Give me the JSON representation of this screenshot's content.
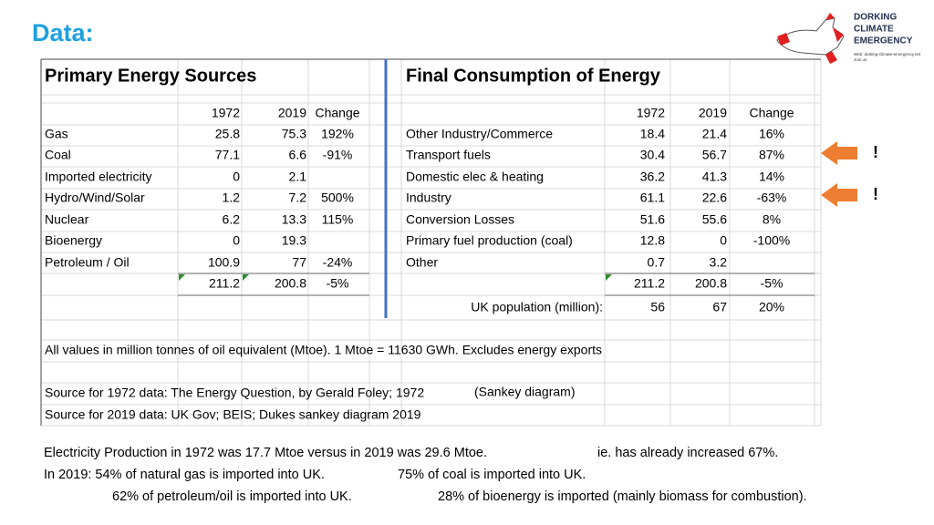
{
  "title": "Data:",
  "logo": {
    "name_lines": [
      "DORKING",
      "CLIMATE",
      "EMERGENCY"
    ],
    "caption_lines": [
      "Web: dorking-climate-emergency.net",
      "Join us."
    ]
  },
  "sheet": {
    "primary": {
      "title": "Primary Energy Sources",
      "header": [
        "1972",
        "2019",
        "Change"
      ],
      "rows": [
        {
          "label": "Gas",
          "y1972": "25.8",
          "y2019": "75.3",
          "change": "192%"
        },
        {
          "label": "Coal",
          "y1972": "77.1",
          "y2019": "6.6",
          "change": "-91%"
        },
        {
          "label": "Imported electricity",
          "y1972": "0",
          "y2019": "2.1"
        },
        {
          "label": "Hydro/Wind/Solar",
          "y1972": "1.2",
          "y2019": "7.2",
          "change": "500%"
        },
        {
          "label": "Nuclear",
          "y1972": "6.2",
          "y2019": "13.3",
          "change": "115%"
        },
        {
          "label": "Bioenergy",
          "y1972": "0",
          "y2019": "19.3"
        },
        {
          "label": "Petroleum / Oil",
          "y1972": "100.9",
          "y2019": "77",
          "change": "-24%"
        }
      ],
      "total": {
        "y1972": "211.2",
        "y2019": "200.8",
        "change": "-5%"
      }
    },
    "final": {
      "title": "Final Consumption of Energy",
      "header": [
        "1972",
        "2019",
        "Change"
      ],
      "rows": [
        {
          "label": "Other Industry/Commerce",
          "y1972": "18.4",
          "y2019": "21.4",
          "change": "16%"
        },
        {
          "label": "Transport fuels",
          "y1972": "30.4",
          "y2019": "56.7",
          "change": "87%"
        },
        {
          "label": "Domestic elec & heating",
          "y1972": "36.2",
          "y2019": "41.3",
          "change": "14%"
        },
        {
          "label": "Industry",
          "y1972": "61.1",
          "y2019": "22.6",
          "change": "-63%"
        },
        {
          "label": "Conversion Losses",
          "y1972": "51.6",
          "y2019": "55.6",
          "change": "8%"
        },
        {
          "label": "Primary fuel production (coal)",
          "y1972": "12.8",
          "y2019": "0",
          "change": "-100%"
        },
        {
          "label": "Other",
          "y1972": "0.7",
          "y2019": "3.2"
        }
      ],
      "total": {
        "y1972": "211.2",
        "y2019": "200.8",
        "change": "-5%"
      },
      "population": {
        "label": "UK population (million):",
        "y1972": "56",
        "y2019": "67",
        "change": "20%"
      }
    },
    "note": "All values in million tonnes of oil equivalent (Mtoe).   1 Mtoe = 11630 GWh. Excludes energy exports",
    "sources": [
      {
        "text": "Source for 1972 data:  The Energy Question, by Gerald Foley; 1972",
        "aside": "(Sankey diagram)"
      },
      {
        "text": "Source for 2019 data:  UK Gov; BEIS; Dukes sankey diagram 2019"
      }
    ]
  },
  "alerts": [
    "!",
    "!"
  ],
  "footer": [
    [
      "Electricity Production in 1972 was 17.7 Mtoe versus in 2019 was 29.6 Mtoe.",
      "ie. has already increased 67%."
    ],
    [
      "In 2019:  54% of natural gas is imported into UK.",
      "75% of coal is imported into UK."
    ],
    [
      "62% of petroleum/oil is imported into UK.",
      "28% of bioenergy is imported (mainly biomass for combustion)."
    ]
  ]
}
